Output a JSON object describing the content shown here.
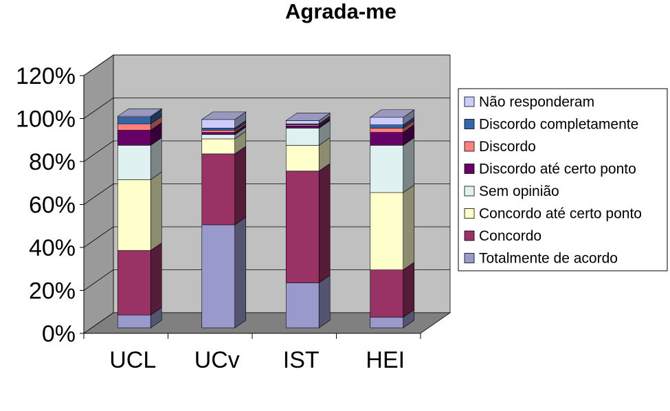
{
  "chart_data": {
    "type": "bar",
    "stacked": true,
    "three_d": true,
    "title": "Agrada-me",
    "categories": [
      "UCL",
      "UCv",
      "IST",
      "HEI"
    ],
    "y_ticks": [
      "0%",
      "20%",
      "40%",
      "60%",
      "80%",
      "100%",
      "120%"
    ],
    "ylim": [
      0,
      120
    ],
    "grid": true,
    "legend_position": "right",
    "series": [
      {
        "name": "Totalmente de acordo",
        "color": "#9999cc",
        "values": [
          6,
          48,
          21,
          5
        ]
      },
      {
        "name": "Concordo",
        "color": "#993366",
        "values": [
          30,
          33,
          52,
          22
        ]
      },
      {
        "name": "Concordo até certo ponto",
        "color": "#ffffcc",
        "values": [
          33,
          7,
          12,
          36
        ]
      },
      {
        "name": "Sem opinião",
        "color": "#dff1f1",
        "values": [
          16,
          2,
          8,
          22
        ]
      },
      {
        "name": "Discordo até certo ponto",
        "color": "#660066",
        "values": [
          7,
          1,
          1,
          6
        ]
      },
      {
        "name": "Discordo",
        "color": "#ff8080",
        "values": [
          3,
          1,
          0.5,
          2
        ]
      },
      {
        "name": "Discordo completamente",
        "color": "#3366aa",
        "values": [
          3,
          1,
          0.5,
          1.5
        ]
      },
      {
        "name": "Não responderam",
        "color": "#ccccff",
        "values": [
          0.5,
          4,
          1.5,
          3.5
        ]
      }
    ]
  }
}
